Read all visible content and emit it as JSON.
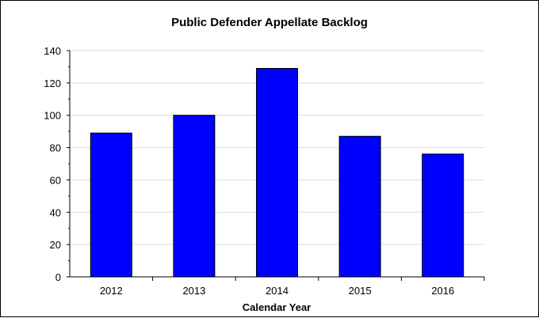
{
  "chart_data": {
    "type": "bar",
    "title": "Public Defender Appellate Backlog",
    "xlabel": "Calendar Year",
    "ylabel": "",
    "categories": [
      "2012",
      "2013",
      "2014",
      "2015",
      "2016"
    ],
    "values": [
      89,
      100,
      129,
      87,
      76
    ],
    "ylim": [
      0,
      140
    ],
    "yticks": [
      "0",
      "20",
      "40",
      "60",
      "80",
      "100",
      "120",
      "140"
    ],
    "grid": true,
    "legend": "none",
    "bar_color": "#0000FF",
    "grid_color": "#D9D9D9"
  }
}
